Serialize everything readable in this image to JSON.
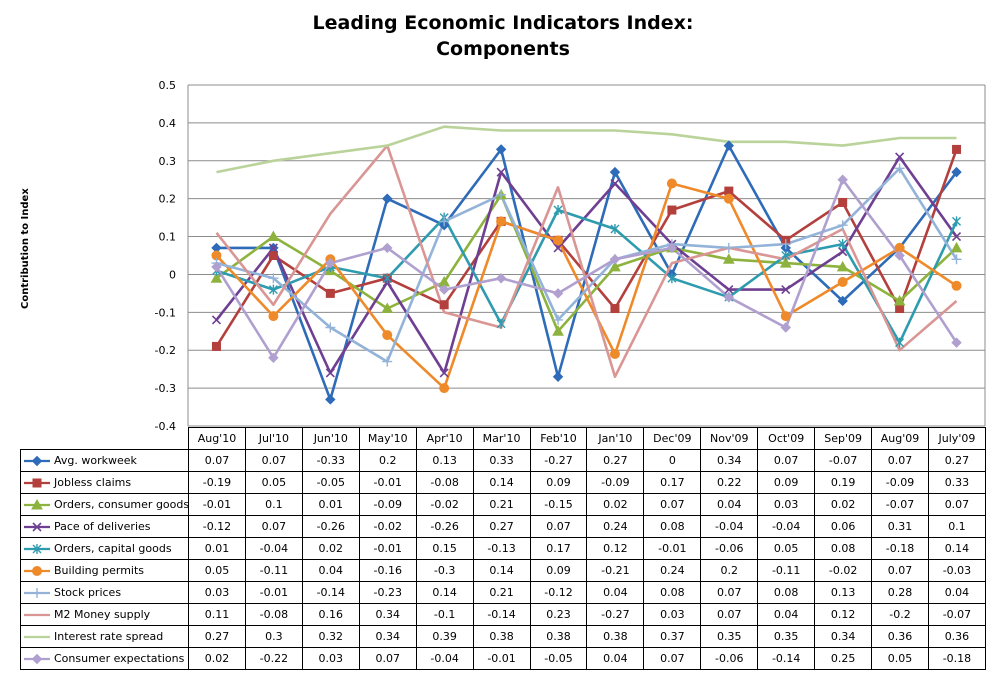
{
  "chart_data": {
    "type": "line",
    "title": [
      "Leading Economic Indicators Index:",
      "Components"
    ],
    "xlabel": "",
    "ylabel": "Contribution to Index",
    "ylim": [
      -0.4,
      0.5
    ],
    "yticks": [
      "0.5",
      "0.4",
      "0.3",
      "0.2",
      "0.1",
      "0",
      "-0.1",
      "-0.2",
      "-0.3",
      "-0.4"
    ],
    "ytick_values": [
      0.5,
      0.4,
      0.3,
      0.2,
      0.1,
      0,
      -0.1,
      -0.2,
      -0.3,
      -0.4
    ],
    "grid": "horizontal",
    "legend": "data table below chart",
    "categories": [
      "Aug'10",
      "Jul'10",
      "Jun'10",
      "May'10",
      "Apr'10",
      "Mar'10",
      "Feb'10",
      "Jan'10",
      "Dec'09",
      "Nov'09",
      "Oct'09",
      "Sep'09",
      "Aug'09",
      "July'09"
    ],
    "series": [
      {
        "name": "Avg. workweek",
        "color": "#2E6BB8",
        "marker": "diamond",
        "values": [
          0.07,
          0.07,
          -0.33,
          0.2,
          0.13,
          0.33,
          -0.27,
          0.27,
          0,
          0.34,
          0.07,
          -0.07,
          0.07,
          0.27
        ],
        "labels": [
          "0.07",
          "0.07",
          "-0.33",
          "0.2",
          "0.13",
          "0.33",
          "-0.27",
          "0.27",
          "0",
          "0.34",
          "0.07",
          "-0.07",
          "0.07",
          "0.27"
        ]
      },
      {
        "name": "Jobless claims",
        "color": "#B3403D",
        "marker": "square",
        "values": [
          -0.19,
          0.05,
          -0.05,
          -0.01,
          -0.08,
          0.14,
          0.09,
          -0.09,
          0.17,
          0.22,
          0.09,
          0.19,
          -0.09,
          0.33
        ],
        "labels": [
          "-0.19",
          "0.05",
          "-0.05",
          "-0.01",
          "-0.08",
          "0.14",
          "0.09",
          "-0.09",
          "0.17",
          "0.22",
          "0.09",
          "0.19",
          "-0.09",
          "0.33"
        ]
      },
      {
        "name": "Orders, consumer goods",
        "color": "#8DB33E",
        "marker": "triangle",
        "values": [
          -0.01,
          0.1,
          0.01,
          -0.09,
          -0.02,
          0.21,
          -0.15,
          0.02,
          0.07,
          0.04,
          0.03,
          0.02,
          -0.07,
          0.07
        ],
        "labels": [
          "-0.01",
          "0.1",
          "0.01",
          "-0.09",
          "-0.02",
          "0.21",
          "-0.15",
          "0.02",
          "0.07",
          "0.04",
          "0.03",
          "0.02",
          "-0.07",
          "0.07"
        ]
      },
      {
        "name": "Pace of deliveries",
        "color": "#6F3F92",
        "marker": "x",
        "values": [
          -0.12,
          0.07,
          -0.26,
          -0.02,
          -0.26,
          0.27,
          0.07,
          0.24,
          0.08,
          -0.04,
          -0.04,
          0.06,
          0.31,
          0.1
        ],
        "labels": [
          "-0.12",
          "0.07",
          "-0.26",
          "-0.02",
          "-0.26",
          "0.27",
          "0.07",
          "0.24",
          "0.08",
          "-0.04",
          "-0.04",
          "0.06",
          "0.31",
          "0.1"
        ]
      },
      {
        "name": "Orders, capital goods",
        "color": "#2E9BAF",
        "marker": "star",
        "values": [
          0.01,
          -0.04,
          0.02,
          -0.01,
          0.15,
          -0.13,
          0.17,
          0.12,
          -0.01,
          -0.06,
          0.05,
          0.08,
          -0.18,
          0.14
        ],
        "labels": [
          "0.01",
          "-0.04",
          "0.02",
          "-0.01",
          "0.15",
          "-0.13",
          "0.17",
          "0.12",
          "-0.01",
          "-0.06",
          "0.05",
          "0.08",
          "-0.18",
          "0.14"
        ]
      },
      {
        "name": "Building permits",
        "color": "#EF8A2A",
        "marker": "circle",
        "values": [
          0.05,
          -0.11,
          0.04,
          -0.16,
          -0.3,
          0.14,
          0.09,
          -0.21,
          0.24,
          0.2,
          -0.11,
          -0.02,
          0.07,
          -0.03
        ],
        "labels": [
          "0.05",
          "-0.11",
          "0.04",
          "-0.16",
          "-0.3",
          "0.14",
          "0.09",
          "-0.21",
          "0.24",
          "0.2",
          "-0.11",
          "-0.02",
          "0.07",
          "-0.03"
        ]
      },
      {
        "name": "Stock prices",
        "color": "#93B3D9",
        "marker": "plus",
        "values": [
          0.03,
          -0.01,
          -0.14,
          -0.23,
          0.14,
          0.21,
          -0.12,
          0.04,
          0.08,
          0.07,
          0.08,
          0.13,
          0.28,
          0.04
        ],
        "labels": [
          "0.03",
          "-0.01",
          "-0.14",
          "-0.23",
          "0.14",
          "0.21",
          "-0.12",
          "0.04",
          "0.08",
          "0.07",
          "0.08",
          "0.13",
          "0.28",
          "0.04"
        ]
      },
      {
        "name": "M2 Money supply",
        "color": "#D99694",
        "marker": "none",
        "values": [
          0.11,
          -0.08,
          0.16,
          0.34,
          -0.1,
          -0.14,
          0.23,
          -0.27,
          0.03,
          0.07,
          0.04,
          0.12,
          -0.2,
          -0.07
        ],
        "labels": [
          "0.11",
          "-0.08",
          "0.16",
          "0.34",
          "-0.1",
          "-0.14",
          "0.23",
          "-0.27",
          "0.03",
          "0.07",
          "0.04",
          "0.12",
          "-0.2",
          "-0.07"
        ]
      },
      {
        "name": "Interest rate spread",
        "color": "#B9D39A",
        "marker": "none",
        "values": [
          0.27,
          0.3,
          0.32,
          0.34,
          0.39,
          0.38,
          0.38,
          0.38,
          0.37,
          0.35,
          0.35,
          0.34,
          0.36,
          0.36
        ],
        "labels": [
          "0.27",
          "0.3",
          "0.32",
          "0.34",
          "0.39",
          "0.38",
          "0.38",
          "0.38",
          "0.37",
          "0.35",
          "0.35",
          "0.34",
          "0.36",
          "0.36"
        ]
      },
      {
        "name": "Consumer expectations",
        "color": "#B0A0CF",
        "marker": "diamond",
        "values": [
          0.02,
          -0.22,
          0.03,
          0.07,
          -0.04,
          -0.01,
          -0.05,
          0.04,
          0.07,
          -0.06,
          -0.14,
          0.25,
          0.05,
          -0.18
        ],
        "labels": [
          "0.02",
          "-0.22",
          "0.03",
          "0.07",
          "-0.04",
          "-0.01",
          "-0.05",
          "0.04",
          "0.07",
          "-0.06",
          "-0.14",
          "0.25",
          "0.05",
          "-0.18"
        ]
      }
    ]
  }
}
